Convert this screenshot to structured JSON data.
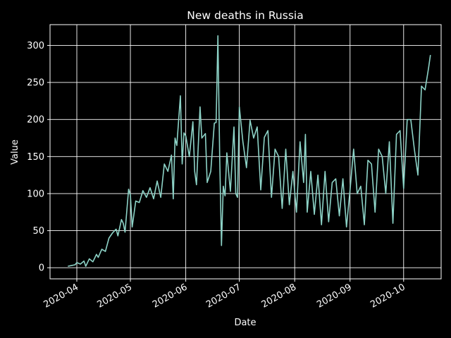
{
  "chart_data": {
    "type": "line",
    "title": "New deaths in Russia",
    "xlabel": "Date",
    "ylabel": "Value",
    "xlim": [
      "2020-03-17",
      "2020-10-22"
    ],
    "ylim": [
      -15,
      328
    ],
    "xticks": [
      {
        "date": "2020-04-01",
        "label": "2020-04"
      },
      {
        "date": "2020-05-01",
        "label": "2020-05"
      },
      {
        "date": "2020-06-01",
        "label": "2020-06"
      },
      {
        "date": "2020-07-01",
        "label": "2020-07"
      },
      {
        "date": "2020-08-01",
        "label": "2020-08"
      },
      {
        "date": "2020-09-01",
        "label": "2020-09"
      },
      {
        "date": "2020-10-01",
        "label": "2020-10"
      }
    ],
    "yticks": [
      0,
      50,
      100,
      150,
      200,
      250,
      300
    ],
    "grid": true,
    "background": "#000000",
    "line_color": "#8dd3c7",
    "series": [
      {
        "x": [
          "2020-03-27",
          "2020-03-29",
          "2020-03-31",
          "2020-04-01",
          "2020-04-03",
          "2020-04-05",
          "2020-04-06",
          "2020-04-08",
          "2020-04-10",
          "2020-04-12",
          "2020-04-13",
          "2020-04-15",
          "2020-04-17",
          "2020-04-19",
          "2020-04-21",
          "2020-04-23",
          "2020-04-24",
          "2020-04-26",
          "2020-04-27",
          "2020-04-28",
          "2020-04-30",
          "2020-05-01",
          "2020-05-02",
          "2020-05-04",
          "2020-05-06",
          "2020-05-08",
          "2020-05-10",
          "2020-05-12",
          "2020-05-14",
          "2020-05-16",
          "2020-05-18",
          "2020-05-20",
          "2020-05-22",
          "2020-05-24",
          "2020-05-25",
          "2020-05-26",
          "2020-05-27",
          "2020-05-29",
          "2020-05-30",
          "2020-05-31",
          "2020-06-01",
          "2020-06-03",
          "2020-06-05",
          "2020-06-06",
          "2020-06-07",
          "2020-06-09",
          "2020-06-10",
          "2020-06-12",
          "2020-06-13",
          "2020-06-15",
          "2020-06-17",
          "2020-06-18",
          "2020-06-19",
          "2020-06-20",
          "2020-06-21",
          "2020-06-22",
          "2020-06-23",
          "2020-06-24",
          "2020-06-26",
          "2020-06-28",
          "2020-06-29",
          "2020-06-30",
          "2020-07-01",
          "2020-07-03",
          "2020-07-05",
          "2020-07-07",
          "2020-07-09",
          "2020-07-11",
          "2020-07-13",
          "2020-07-15",
          "2020-07-17",
          "2020-07-19",
          "2020-07-21",
          "2020-07-23",
          "2020-07-25",
          "2020-07-27",
          "2020-07-29",
          "2020-07-31",
          "2020-08-02",
          "2020-08-04",
          "2020-08-06",
          "2020-08-07",
          "2020-08-08",
          "2020-08-10",
          "2020-08-12",
          "2020-08-14",
          "2020-08-16",
          "2020-08-18",
          "2020-08-20",
          "2020-08-22",
          "2020-08-24",
          "2020-08-26",
          "2020-08-28",
          "2020-08-30",
          "2020-09-01",
          "2020-09-03",
          "2020-09-05",
          "2020-09-07",
          "2020-09-09",
          "2020-09-11",
          "2020-09-13",
          "2020-09-15",
          "2020-09-17",
          "2020-09-19",
          "2020-09-21",
          "2020-09-23",
          "2020-09-25",
          "2020-09-27",
          "2020-09-29",
          "2020-10-01",
          "2020-10-03",
          "2020-10-05",
          "2020-10-07",
          "2020-10-09",
          "2020-10-11",
          "2020-10-13",
          "2020-10-14",
          "2020-10-15",
          "2020-10-16"
        ],
        "y": [
          2,
          3,
          4,
          7,
          5,
          9,
          2,
          12,
          8,
          18,
          14,
          25,
          22,
          40,
          47,
          52,
          43,
          65,
          60,
          48,
          106,
          98,
          55,
          90,
          88,
          104,
          95,
          108,
          93,
          117,
          95,
          140,
          130,
          152,
          93,
          175,
          165,
          232,
          140,
          182,
          178,
          150,
          197,
          130,
          112,
          217,
          175,
          181,
          115,
          130,
          195,
          196,
          313,
          150,
          30,
          110,
          97,
          155,
          103,
          190,
          100,
          95,
          217,
          170,
          135,
          199,
          175,
          190,
          105,
          176,
          185,
          95,
          160,
          150,
          80,
          160,
          85,
          130,
          75,
          170,
          115,
          180,
          75,
          130,
          72,
          125,
          58,
          130,
          62,
          115,
          120,
          70,
          120,
          55,
          105,
          160,
          100,
          110,
          58,
          145,
          140,
          75,
          160,
          150,
          100,
          170,
          60,
          180,
          185,
          107,
          200,
          200,
          160,
          125,
          245,
          240,
          255,
          270,
          287
        ]
      }
    ]
  }
}
